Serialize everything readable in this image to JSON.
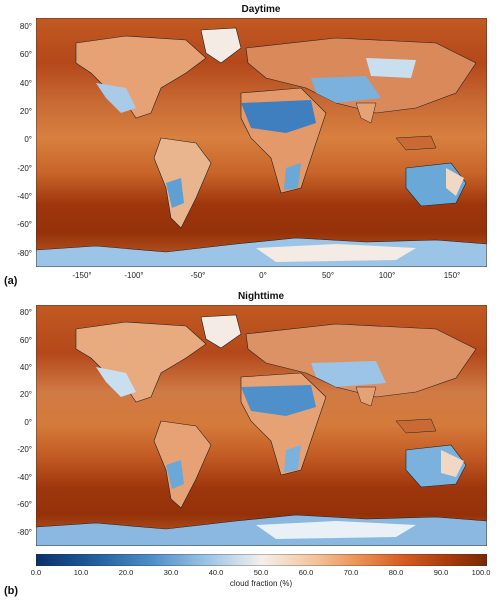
{
  "panels": [
    {
      "id": "a",
      "title": "Daytime",
      "label": "(a)",
      "y_ticks": [
        "80°",
        "60°",
        "40°",
        "20°",
        "0°",
        "-20°",
        "-40°",
        "-60°",
        "-80°"
      ],
      "x_ticks": [
        "-150°",
        "-100°",
        "-50°",
        "0°",
        "50°",
        "100°",
        "150°"
      ]
    },
    {
      "id": "b",
      "title": "Nighttime",
      "label": "(b)",
      "y_ticks": [
        "80°",
        "60°",
        "40°",
        "20°",
        "0°",
        "-20°",
        "-40°",
        "-60°",
        "-80°"
      ],
      "x_ticks": []
    }
  ],
  "colorbar": {
    "label": "cloud fraction (%)",
    "ticks": [
      "0.0",
      "10.0",
      "20.0",
      "30.0",
      "40.0",
      "50.0",
      "60.0",
      "70.0",
      "80.0",
      "90.0",
      "100.0"
    ],
    "range": [
      0,
      100
    ],
    "colors": [
      "#08306b",
      "#2f6fae",
      "#6aa8d8",
      "#c9dff0",
      "#f5efe8",
      "#f6c49e",
      "#ec8a4a",
      "#d5541b",
      "#a8390a",
      "#7a2704"
    ]
  }
}
